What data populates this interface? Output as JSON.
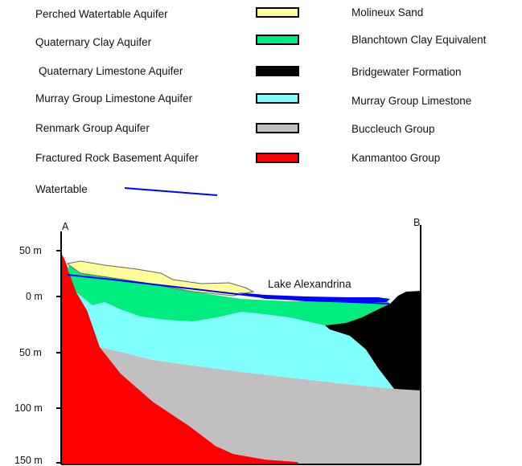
{
  "legend": {
    "aquifers": [
      {
        "label": "Perched Watertable Aquifer",
        "formation": "Molineux Sand",
        "color": "#FFFF99"
      },
      {
        "label": "Quaternary Clay Aquifer",
        "formation": "Blanchtown Clay Equivalent",
        "color": "#00EE80"
      },
      {
        "label": "Quaternary Limestone Aquifer",
        "formation": "Bridgewater Formation",
        "color": "#000000"
      },
      {
        "label": "Murray Group Limestone Aquifer",
        "formation": "Murray Group Limestone",
        "color": "#80FFFF"
      },
      {
        "label": "Renmark Group Aquifer",
        "formation": "Buccleuch Group",
        "color": "#C0C0C0"
      },
      {
        "label": "Fractured Rock Basement Aquifer",
        "formation": "Kanmantoo Group",
        "color": "#FF0000"
      }
    ],
    "watertable": {
      "label": "Watertable",
      "color": "#0000FF"
    }
  },
  "section": {
    "start_label": "A",
    "end_label": "B",
    "lake_label": "Lake Alexandrina",
    "lake_color": "#0000FF",
    "depth_ticks": [
      "50 m",
      "0 m",
      "50 m",
      "100 m",
      "150 m"
    ]
  }
}
